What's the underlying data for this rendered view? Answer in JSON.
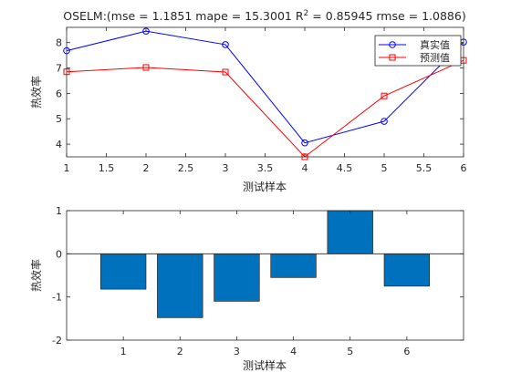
{
  "chart_data": [
    {
      "type": "line",
      "title": "OSELM:(mse = 1.1851 mape = 15.3001  R",
      "title_superscript": "2",
      "title_tail": " = 0.85945 rmse = 1.0886)",
      "xlabel": "测试样本",
      "ylabel": "热效率",
      "xlim": [
        1,
        6
      ],
      "ylim": [
        3.5,
        8.6
      ],
      "xticks": [
        "1",
        "1.5",
        "2",
        "2.5",
        "3",
        "3.5",
        "4",
        "4.5",
        "5",
        "5.5",
        "6"
      ],
      "yticks": [
        "4",
        "5",
        "6",
        "7",
        "8"
      ],
      "x": [
        1,
        2,
        3,
        4,
        5,
        6
      ],
      "series": [
        {
          "name": "真实值",
          "marker": "circle",
          "color": "#0000ff",
          "values": [
            7.68,
            8.45,
            7.92,
            4.05,
            4.9,
            8.02
          ]
        },
        {
          "name": "预测值",
          "marker": "square",
          "color": "#ff0000",
          "values": [
            6.85,
            7.02,
            6.84,
            3.5,
            5.9,
            7.3
          ]
        }
      ],
      "legend_position": "top-right",
      "grid": false
    },
    {
      "type": "bar",
      "xlabel": "测试样本",
      "ylabel": "热效率",
      "categories": [
        "1",
        "2",
        "3",
        "4",
        "5",
        "6"
      ],
      "values": [
        -0.82,
        -1.48,
        -1.1,
        -0.55,
        1.0,
        -0.75
      ],
      "ylim": [
        -2,
        1
      ],
      "yticks": [
        "-2",
        "-1",
        "0",
        "1"
      ],
      "color": "#0072bd",
      "grid": false
    }
  ]
}
